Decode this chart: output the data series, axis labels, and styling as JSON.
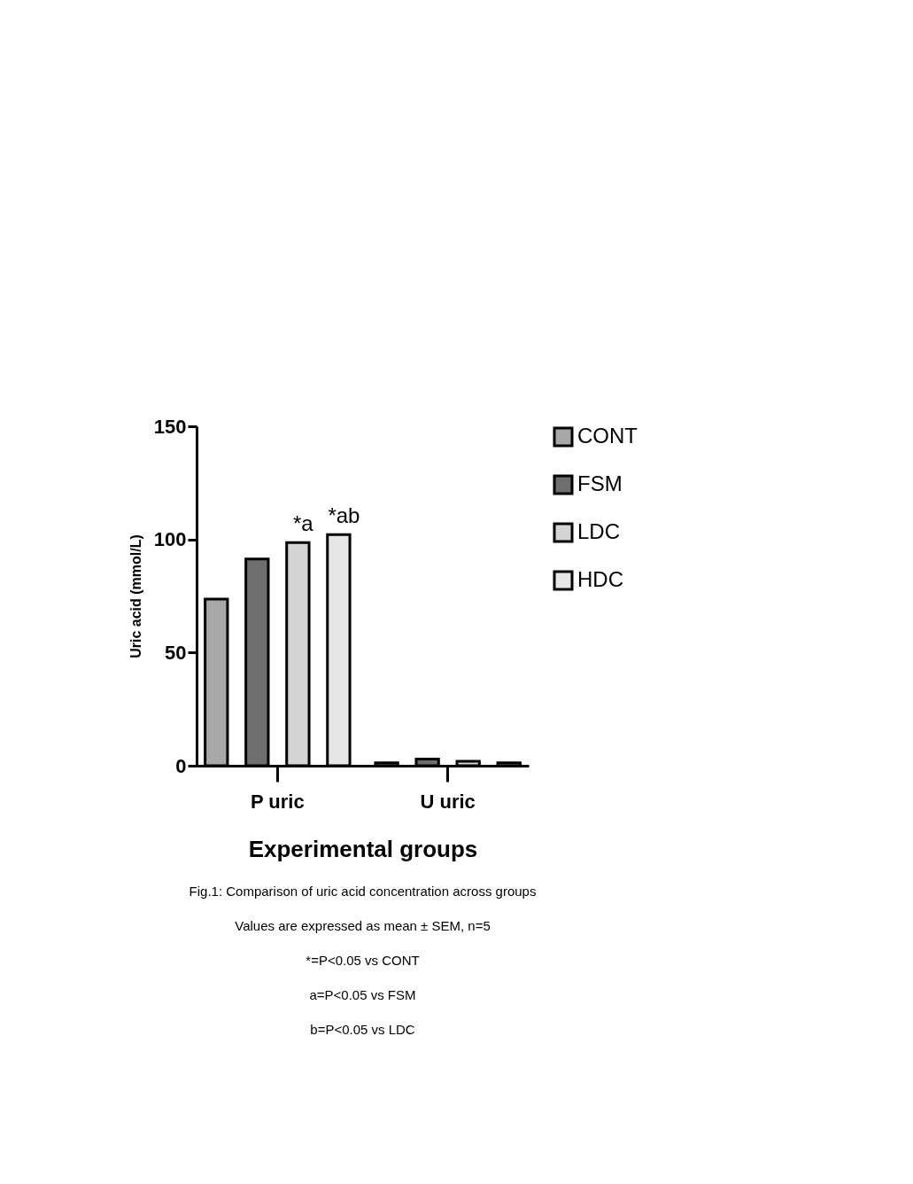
{
  "chart_data": {
    "type": "bar",
    "categories": [
      "P uric",
      "U uric"
    ],
    "series": [
      {
        "name": "CONT",
        "color": "#a8a8a8",
        "values": [
          73.6,
          1.3
        ]
      },
      {
        "name": "FSM",
        "color": "#6e6e6e",
        "values": [
          91.4,
          2.9
        ]
      },
      {
        "name": "LDC",
        "color": "#d4d4d4",
        "values": [
          98.6,
          2.0
        ],
        "value_labels": [
          "*a",
          null
        ]
      },
      {
        "name": "HDC",
        "color": "#e6e6e6",
        "values": [
          102.1,
          1.3
        ],
        "value_labels": [
          "*ab",
          null
        ]
      }
    ],
    "ylim": [
      0,
      150
    ],
    "yticks": [
      0,
      50,
      100,
      150
    ],
    "ylabel": "Uric acid (mmol/L)",
    "xlabel": "Experimental groups",
    "legend": "right",
    "grid": false,
    "annotations": [
      "Fig.1: Comparison of uric acid concentration across groups",
      "Values are expressed as mean ± SEM, n=5",
      "*=P<0.05 vs CONT",
      "a=P<0.05 vs FSM",
      "b=P<0.05 vs LDC"
    ]
  }
}
